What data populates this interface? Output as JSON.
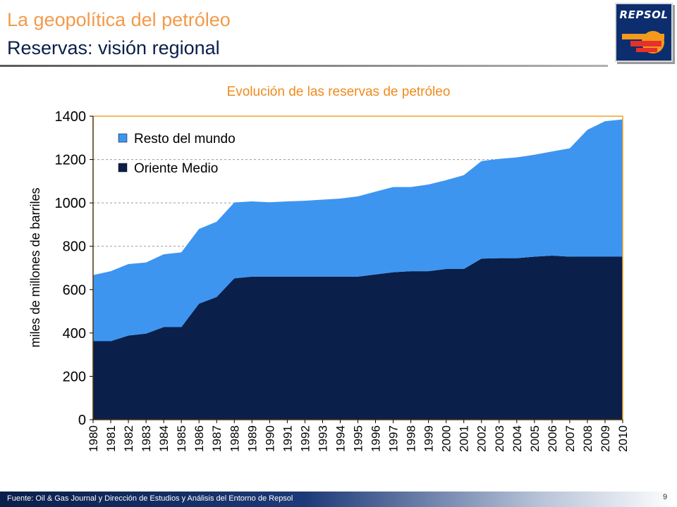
{
  "header": {
    "title": "La geopolítica del petróleo",
    "subtitle": "Reservas: visión regional",
    "logo_text": "REPSOL"
  },
  "colors": {
    "title": "#f39a4a",
    "subtitle": "#0a1f4a",
    "chart_title": "#f08a1c",
    "resto_del_mundo": "#3d95f0",
    "oriente_medio": "#0a1f4a",
    "plot_border": "#f0a020"
  },
  "chart_data": {
    "type": "area",
    "stacked": true,
    "title": "Evolución de las reservas de petróleo",
    "xlabel": "",
    "ylabel": "miles de millones de barriles",
    "ylim": [
      0,
      1400
    ],
    "yticks": [
      0,
      200,
      400,
      600,
      800,
      1000,
      1200,
      1400
    ],
    "grid": true,
    "legend": "top-left",
    "categories": [
      "1980",
      "1981",
      "1982",
      "1983",
      "1984",
      "1985",
      "1986",
      "1987",
      "1988",
      "1989",
      "1990",
      "1991",
      "1992",
      "1993",
      "1994",
      "1995",
      "1996",
      "1997",
      "1998",
      "1999",
      "2000",
      "2001",
      "2002",
      "2003",
      "2004",
      "2005",
      "2006",
      "2007",
      "2008",
      "2009",
      "2010"
    ],
    "series": [
      {
        "name": "Oriente Medio",
        "values": [
          362,
          362,
          388,
          397,
          427,
          427,
          535,
          566,
          652,
          660,
          660,
          660,
          660,
          660,
          660,
          660,
          670,
          680,
          685,
          685,
          695,
          695,
          743,
          745,
          745,
          752,
          757,
          752,
          752,
          752,
          752
        ]
      },
      {
        "name": "Resto del mundo",
        "values": [
          305,
          323,
          330,
          328,
          336,
          345,
          345,
          347,
          350,
          347,
          343,
          347,
          350,
          355,
          360,
          370,
          382,
          393,
          388,
          400,
          410,
          433,
          450,
          458,
          465,
          470,
          480,
          500,
          585,
          625,
          633
        ]
      }
    ]
  },
  "footer": {
    "source": "Fuente: Oil & Gas Journal y Dirección de Estudios y Análisis del Entorno de Repsol",
    "page_number": "9"
  }
}
